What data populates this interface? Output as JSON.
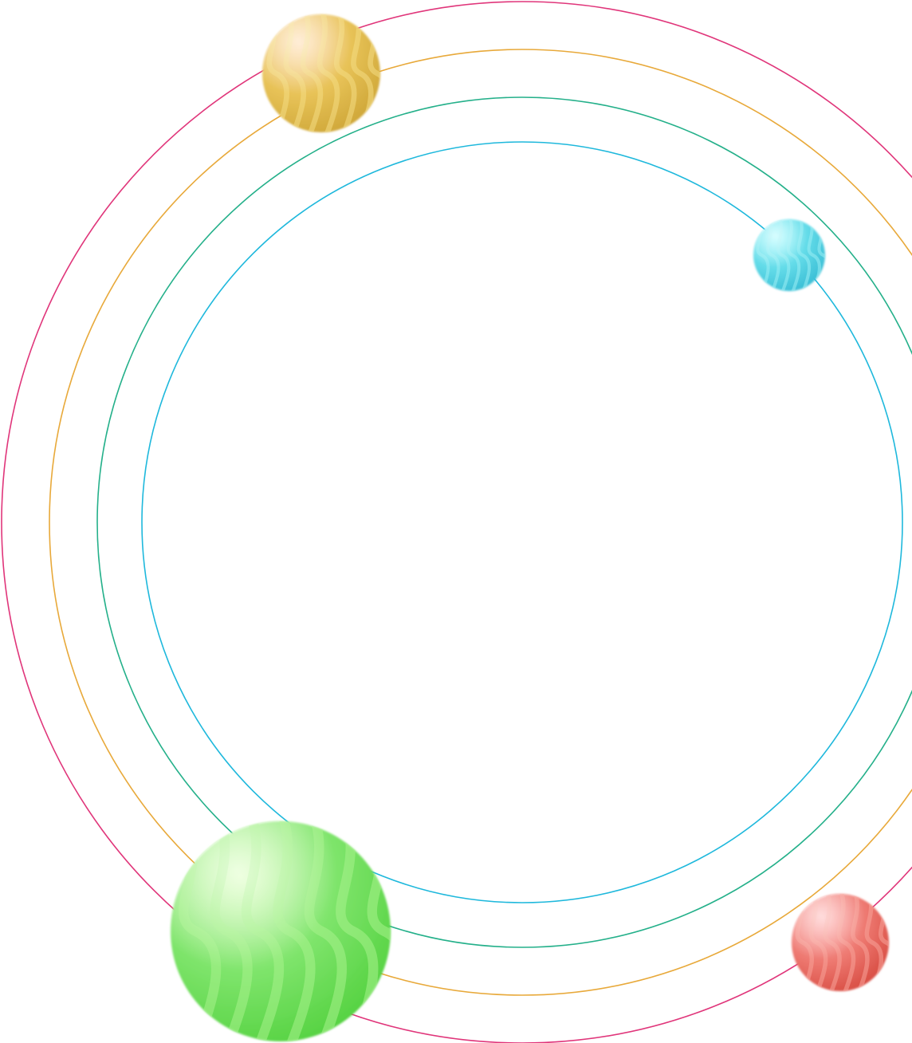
{
  "scene": {
    "background": "#ffffff",
    "rings": [
      {
        "name": "orbit-ring-outer",
        "color": "#e0357a"
      },
      {
        "name": "orbit-ring-second",
        "color": "#e8a93a"
      },
      {
        "name": "orbit-ring-third",
        "color": "#24b08a"
      },
      {
        "name": "orbit-ring-inner",
        "color": "#1eb8dc"
      }
    ],
    "spheres": [
      {
        "name": "yellow-sphere",
        "colors": {
          "highlight": "#ffd9a8",
          "base": "#e7c257",
          "shadow": "#d0a83a",
          "swirl": "#f5dd84"
        }
      },
      {
        "name": "cyan-sphere",
        "colors": {
          "highlight": "#a6fbff",
          "base": "#63dbe8",
          "shadow": "#3cbfd6",
          "swirl": "#9beff5"
        }
      },
      {
        "name": "green-sphere",
        "colors": {
          "highlight": "#dcffc0",
          "base": "#7ee46b",
          "shadow": "#57d343",
          "swirl": "#a8f38c"
        }
      },
      {
        "name": "red-sphere",
        "colors": {
          "highlight": "#ffb3b3",
          "base": "#ee7a72",
          "shadow": "#d94f45",
          "swirl": "#f8a39a"
        }
      }
    ]
  }
}
